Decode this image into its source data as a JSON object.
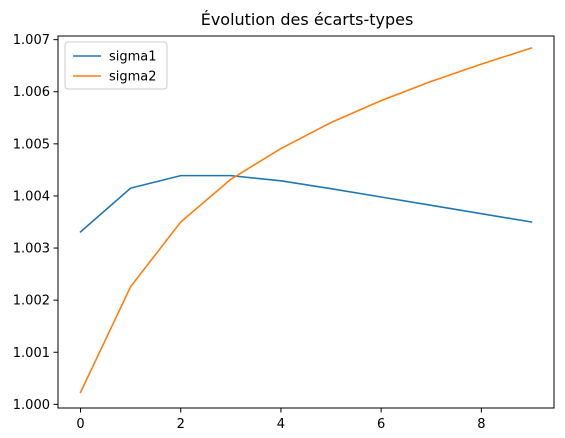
{
  "chart_data": {
    "type": "line",
    "title": "Évolution des écarts-types",
    "xlabel": "",
    "ylabel": "",
    "x": [
      0,
      1,
      2,
      3,
      4,
      5,
      6,
      7,
      8,
      9
    ],
    "xlim": [
      -0.45,
      9.45
    ],
    "ylim": [
      0.99993,
      1.00707
    ],
    "xticks": [
      0,
      2,
      4,
      6,
      8
    ],
    "xtick_labels": [
      "0",
      "2",
      "4",
      "6",
      "8"
    ],
    "yticks": [
      1.0,
      1.001,
      1.002,
      1.003,
      1.004,
      1.005,
      1.006,
      1.007
    ],
    "ytick_labels": [
      "1.000",
      "1.001",
      "1.002",
      "1.003",
      "1.004",
      "1.005",
      "1.006",
      "1.007"
    ],
    "grid": false,
    "legend_position": "top-left",
    "series": [
      {
        "name": "sigma1",
        "color": "#1f77b4",
        "values": [
          1.00331,
          1.00415,
          1.00439,
          1.00439,
          1.00429,
          1.00414,
          1.00398,
          1.00382,
          1.00366,
          1.0035
        ]
      },
      {
        "name": "sigma2",
        "color": "#ff7f0e",
        "values": [
          1.00023,
          1.00226,
          1.0035,
          1.00432,
          1.00491,
          1.00541,
          1.00583,
          1.0062,
          1.00653,
          1.00684
        ]
      }
    ]
  }
}
